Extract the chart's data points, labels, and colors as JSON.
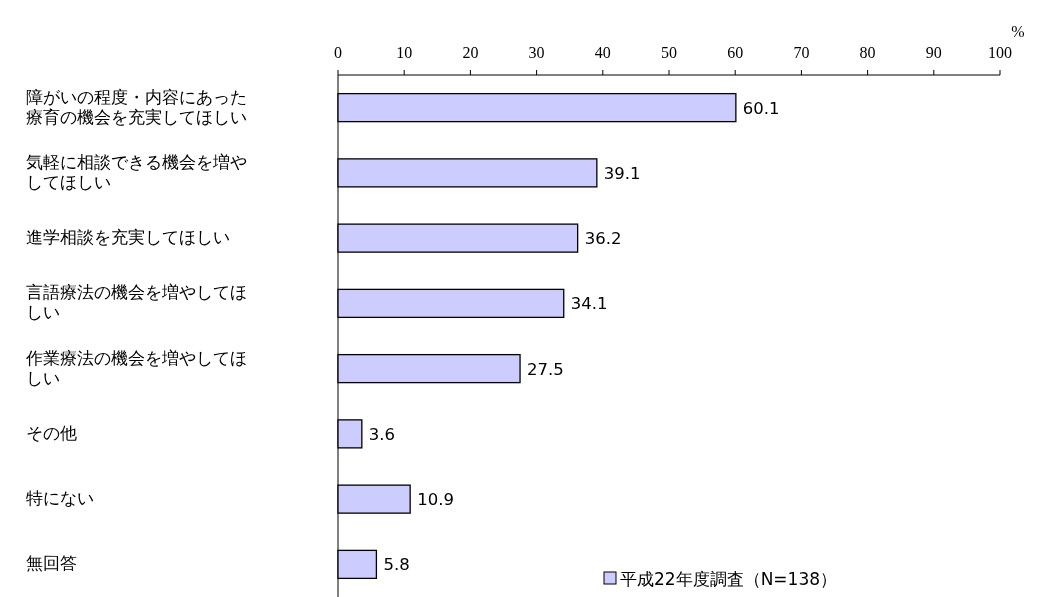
{
  "chart_data": {
    "type": "bar",
    "orientation": "horizontal",
    "categories": [
      "障がいの程度・内容にあった療育の機会を充実してほしい",
      "気軽に相談できる機会を増やしてほしい",
      "進学相談を充実してほしい",
      "言語療法の機会を増やしてほしい",
      "作業療法の機会を増やしてほしい",
      "その他",
      "特にない",
      "無回答"
    ],
    "series": [
      {
        "name": "平成22年度調査（N=138）",
        "color": "#ccccff",
        "values": [
          60.1,
          39.1,
          36.2,
          34.1,
          27.5,
          3.6,
          10.9,
          5.8
        ]
      }
    ],
    "xlim": [
      0,
      100
    ],
    "xticks": [
      0,
      10,
      20,
      30,
      40,
      50,
      60,
      70,
      80,
      90,
      100
    ],
    "xlabel": "%",
    "data_labels": true,
    "legend": "bottom right"
  }
}
